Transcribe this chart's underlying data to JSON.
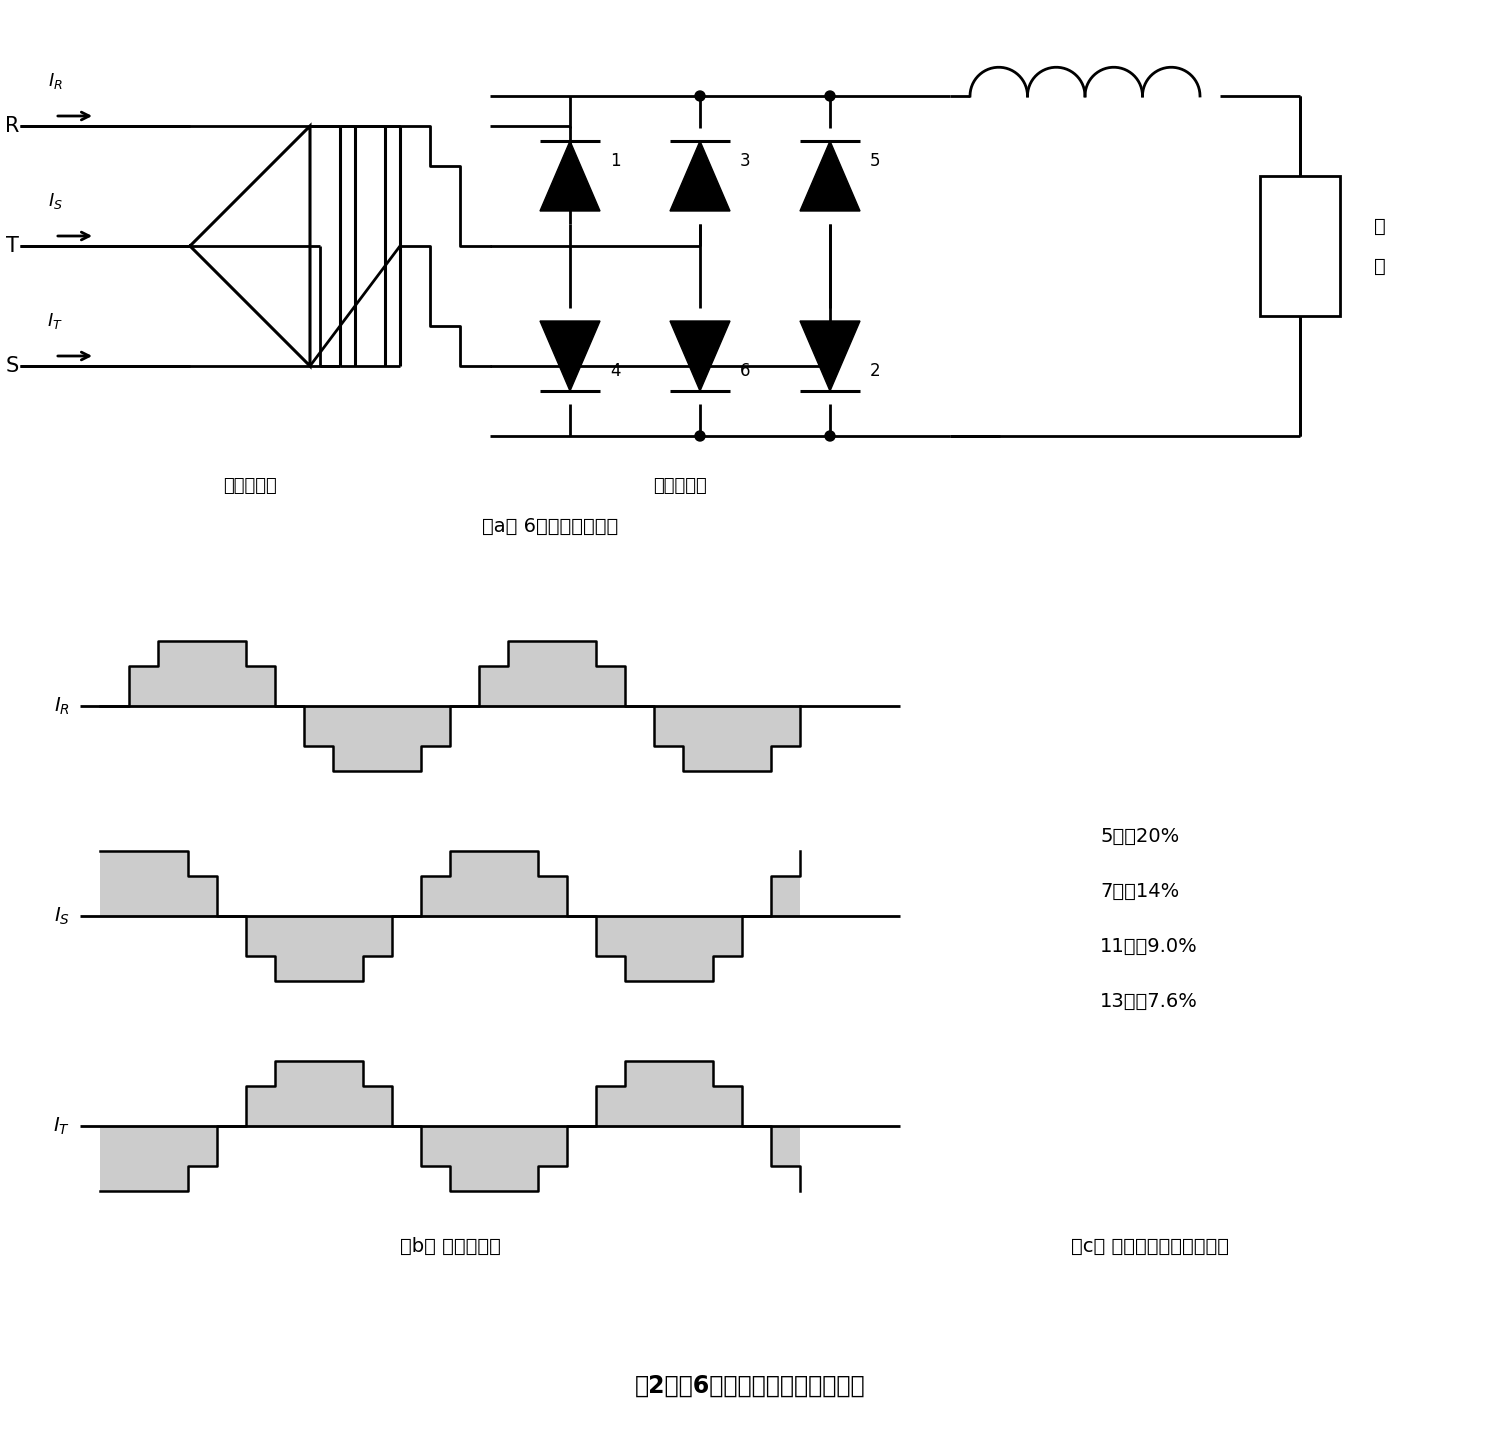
{
  "title": "第2図　6相整流器の高調波発生例",
  "subtitle_a": "（a） 6相整流回路の例",
  "subtitle_b": "（b） 電流波形例",
  "subtitle_c": "（c） 高調波成分（計算値）",
  "harmonics": [
    "5次：20%",
    "7次：14%",
    "11次：9.0%",
    "13次：7.6%"
  ],
  "transformer_label": "（変圧器）",
  "rectifier_label": "（整流器）",
  "load_label1": "負",
  "load_label2": "荷",
  "wave_color": "#cccccc",
  "wave_edge": "#000000",
  "line_color": "#000000",
  "bg_color": "#ffffff"
}
